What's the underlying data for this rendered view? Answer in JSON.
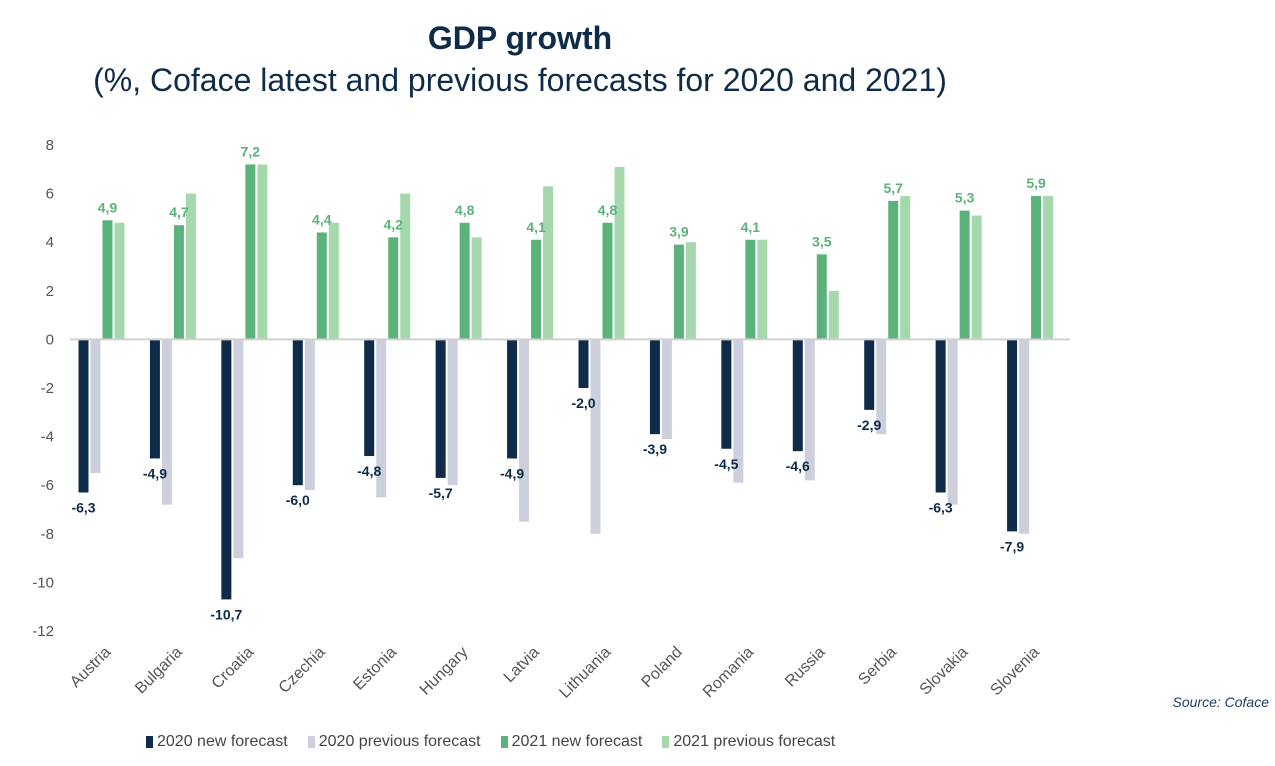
{
  "title": "GDP growth",
  "subtitle": "(%, Coface latest and previous forecasts for 2020 and 2021)",
  "source": "Source: Coface",
  "colors": {
    "new_2020": "#0e2c4a",
    "prev_2020": "#cdd0dc",
    "new_2021": "#5bb27a",
    "prev_2021": "#a6d8ae",
    "label_2020": "#0e2c4a",
    "label_2021": "#5bb27a",
    "axis_text": "#555555",
    "zero_line": "#d0d0d0"
  },
  "chart_data": {
    "type": "bar",
    "title": "GDP growth",
    "subtitle": "(%, Coface latest and previous forecasts for 2020 and 2021)",
    "categories": [
      "Austria",
      "Bulgaria",
      "Croatia",
      "Czechia",
      "Estonia",
      "Hungary",
      "Latvia",
      "Lithuania",
      "Poland",
      "Romania",
      "Russia",
      "Serbia",
      "Slovakia",
      "Slovenia"
    ],
    "series": [
      {
        "name": "2020 new forecast",
        "values": [
          -6.3,
          -4.9,
          -10.7,
          -6.0,
          -4.8,
          -5.7,
          -4.9,
          -2.0,
          -3.9,
          -4.5,
          -4.6,
          -2.9,
          -6.3,
          -7.9
        ],
        "labels": [
          "-6,3",
          "-4,9",
          "-10,7",
          "-6,0",
          "-4,8",
          "-5,7",
          "-4,9",
          "-2,0",
          "-3,9",
          "-4,5",
          "-4,6",
          "-2,9",
          "-6,3",
          "-7,9"
        ]
      },
      {
        "name": "2020 previous forecast",
        "values": [
          -5.5,
          -6.8,
          -9.0,
          -6.2,
          -6.5,
          -6.0,
          -7.5,
          -8.0,
          -4.1,
          -5.9,
          -5.8,
          -3.9,
          -6.8,
          -8.0
        ]
      },
      {
        "name": "2021 new forecast",
        "values": [
          4.9,
          4.7,
          7.2,
          4.4,
          4.2,
          4.8,
          4.1,
          4.8,
          3.9,
          4.1,
          3.5,
          5.7,
          5.3,
          5.9
        ],
        "labels": [
          "4,9",
          "4,7",
          "7,2",
          "4,4",
          "4,2",
          "4,8",
          "4,1",
          "4,8",
          "3,9",
          "4,1",
          "3,5",
          "5,7",
          "5,3",
          "5,9"
        ]
      },
      {
        "name": "2021 previous forecast",
        "values": [
          4.8,
          6.0,
          7.2,
          4.8,
          6.0,
          4.2,
          6.3,
          7.1,
          4.0,
          4.1,
          2.0,
          5.9,
          5.1,
          5.9
        ]
      }
    ],
    "yticks": [
      "8",
      "6",
      "4",
      "2",
      "0",
      "-2",
      "-4",
      "-6",
      "-8",
      "-10",
      "-12"
    ],
    "ylim": [
      -12,
      8
    ],
    "grid": false,
    "legend_position": "bottom"
  },
  "legend": [
    {
      "label": "2020 new forecast",
      "color": "#0e2c4a"
    },
    {
      "label": "2020 previous forecast",
      "color": "#cdd0dc"
    },
    {
      "label": "2021 new forecast",
      "color": "#5bb27a"
    },
    {
      "label": "2021 previous forecast",
      "color": "#a6d8ae"
    }
  ]
}
